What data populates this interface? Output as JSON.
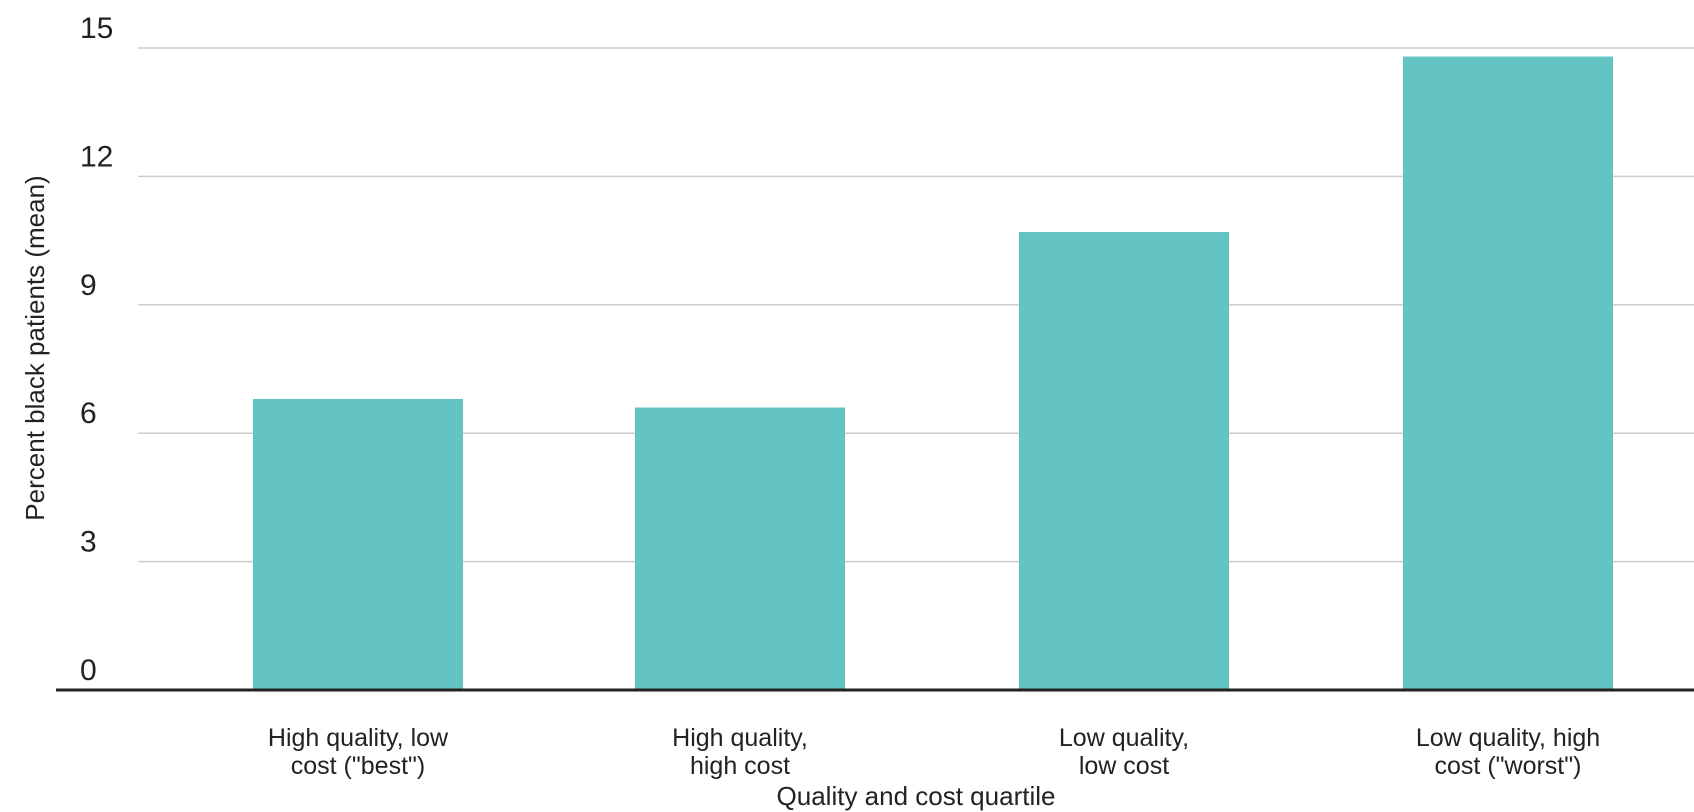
{
  "chart_data": {
    "type": "bar",
    "categories": [
      [
        "High quality, low",
        "cost (\"best\")"
      ],
      [
        "High quality,",
        "high cost"
      ],
      [
        "Low quality,",
        "low cost"
      ],
      [
        "Low quality, high",
        "cost (\"worst\")"
      ]
    ],
    "values": [
      6.8,
      6.6,
      10.7,
      14.8
    ],
    "xlabel": "Quality and cost quartile",
    "ylabel": "Percent black patients (mean)",
    "ylim": [
      0,
      15
    ],
    "yticks": [
      0,
      3,
      6,
      9,
      12,
      15
    ],
    "grid": true,
    "bar_color": "#64c4c4",
    "grid_color": "#cccccc",
    "axis_color": "#222222"
  }
}
